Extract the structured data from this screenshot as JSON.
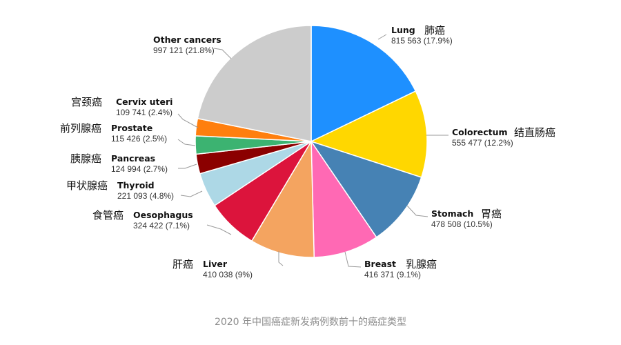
{
  "chart_data": {
    "type": "pie",
    "start_angle_deg": 0,
    "direction": "clockwise",
    "legend": "none",
    "slices": [
      {
        "name": "Lung",
        "name_zh": "肺癌",
        "value_text": "815 563 (17.9%)",
        "value": 815563,
        "percent": 17.9,
        "color": "#1e90ff"
      },
      {
        "name": "Colorectum",
        "name_zh": "结直肠癌",
        "value_text": "555 477 (12.2%)",
        "value": 555477,
        "percent": 12.2,
        "color": "#ffd700"
      },
      {
        "name": "Stomach",
        "name_zh": "胃癌",
        "value_text": "478 508 (10.5%)",
        "value": 478508,
        "percent": 10.5,
        "color": "#4682b4"
      },
      {
        "name": "Breast",
        "name_zh": "乳腺癌",
        "value_text": "416 371 (9.1%)",
        "value": 416371,
        "percent": 9.1,
        "color": "#ff69b4"
      },
      {
        "name": "Liver",
        "name_zh": "肝癌",
        "value_text": "410 038 (9%)",
        "value": 410038,
        "percent": 9.0,
        "color": "#f4a460"
      },
      {
        "name": "Oesophagus",
        "name_zh": "食管癌",
        "value_text": "324 422 (7.1%)",
        "value": 324422,
        "percent": 7.1,
        "color": "#dc143c"
      },
      {
        "name": "Thyroid",
        "name_zh": "甲状腺癌",
        "value_text": "221 093 (4.8%)",
        "value": 221093,
        "percent": 4.8,
        "color": "#add8e6"
      },
      {
        "name": "Pancreas",
        "name_zh": "胰腺癌",
        "value_text": "124 994 (2.7%)",
        "value": 124994,
        "percent": 2.7,
        "color": "#8b0000"
      },
      {
        "name": "Prostate",
        "name_zh": "前列腺癌",
        "value_text": "115 426 (2.5%)",
        "value": 115426,
        "percent": 2.5,
        "color": "#3cb371"
      },
      {
        "name": "Cervix uteri",
        "name_zh": "宫颈癌",
        "value_text": "109 741 (2.4%)",
        "value": 109741,
        "percent": 2.4,
        "color": "#ff7f0e"
      },
      {
        "name": "Other cancers",
        "name_zh": "",
        "value_text": "997 121 (21.8%)",
        "value": 997121,
        "percent": 21.8,
        "color": "#cccccc"
      }
    ]
  },
  "caption": "2020 年中国癌症新发病例数前十的癌症类型"
}
